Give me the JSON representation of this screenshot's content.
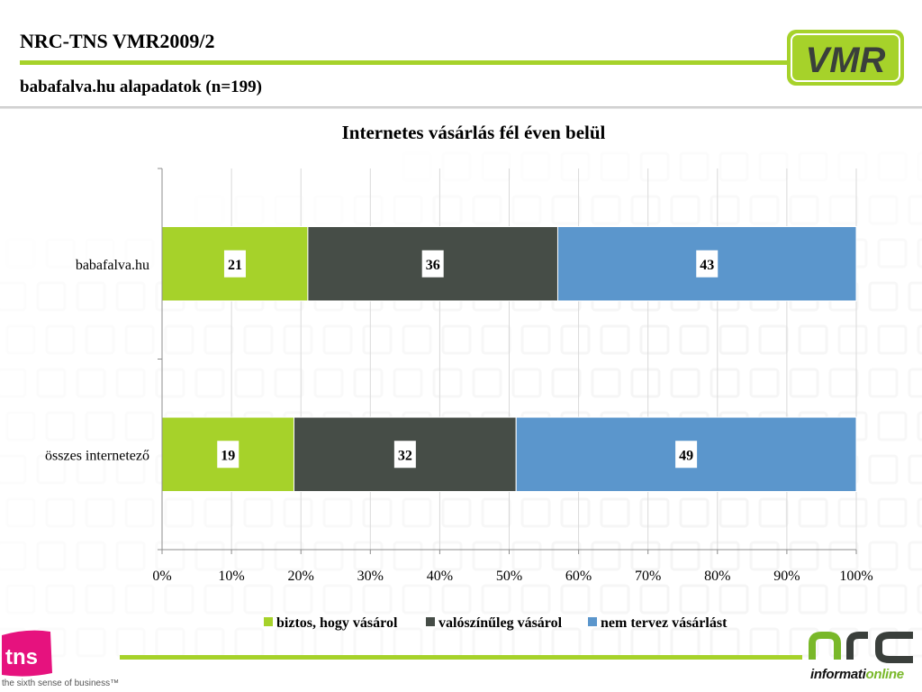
{
  "header": {
    "title": "NRC-TNS VMR2009/2",
    "subtitle": "babafalva.hu alapadatok (n=199)"
  },
  "logos": {
    "vmr": "VMR",
    "tns": "tns",
    "tns_tagline": "the sixth sense of business™",
    "nrc": "nrc",
    "nrc_tagline_a": "informati",
    "nrc_tagline_b": "online"
  },
  "colors": {
    "accent_green": "#a6d22a",
    "series_1": "#a6d22a",
    "series_2": "#464d47",
    "series_3": "#5b96cc",
    "tns_pink": "#e6127e"
  },
  "chart_data": {
    "type": "bar",
    "orientation": "horizontal",
    "stacked": "percent",
    "title": "Internetes vásárlás fél éven belül",
    "categories": [
      "babafalva.hu",
      "összes internetező"
    ],
    "series": [
      {
        "name": "biztos, hogy vásárol",
        "values": [
          21,
          19
        ]
      },
      {
        "name": "valószínűleg vásárol",
        "values": [
          36,
          32
        ]
      },
      {
        "name": "nem tervez vásárlást",
        "values": [
          43,
          49
        ]
      }
    ],
    "xlim": [
      0,
      100
    ],
    "xticks": [
      "0%",
      "10%",
      "20%",
      "30%",
      "40%",
      "50%",
      "60%",
      "70%",
      "80%",
      "90%",
      "100%"
    ],
    "grid": true,
    "legend": "bottom"
  }
}
